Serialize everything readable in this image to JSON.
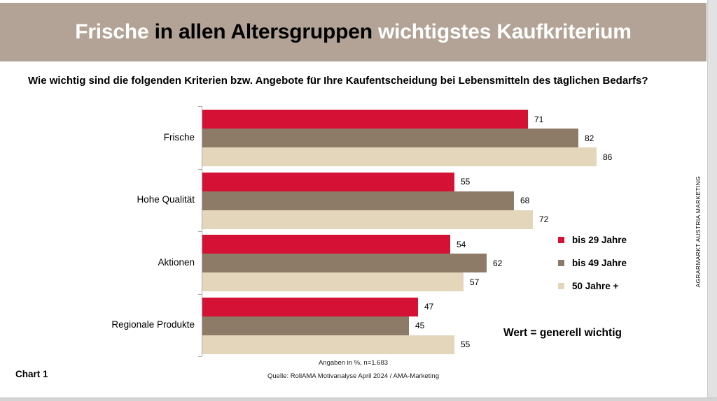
{
  "banner": {
    "background": "#b2a396",
    "title_parts": [
      {
        "text": "Frische",
        "color": "#ffffff"
      },
      {
        "text": " in allen Altersgruppen ",
        "color": "#000000"
      },
      {
        "text": "wichtigstes Kaufkriterium",
        "color": "#ffffff"
      }
    ]
  },
  "subtitle": "Wie wichtig sind die folgenden Kriterien bzw. Angebote für Ihre Kaufentscheidung bei Lebensmitteln des täglichen Bedarfs?",
  "chart_data": {
    "type": "bar",
    "orientation": "horizontal",
    "title": "Frische in allen Altersgruppen wichtigstes Kaufkriterium",
    "categories": [
      "Frische",
      "Hohe Qualität",
      "Aktionen",
      "Regionale Produkte"
    ],
    "series": [
      {
        "name": "bis 29 Jahre",
        "color": "#d51235",
        "values": [
          71,
          55,
          54,
          47
        ]
      },
      {
        "name": "bis 49 Jahre",
        "color": "#8d7b68",
        "values": [
          82,
          68,
          62,
          45
        ]
      },
      {
        "name": "50 Jahre +",
        "color": "#e4d6ba",
        "values": [
          86,
          72,
          57,
          55
        ]
      }
    ],
    "value_axis_range": [
      0,
      100
    ],
    "value_labels_shown": true,
    "legend_position": "right",
    "gridlines": false
  },
  "annotations": {
    "note": "Wert = generell wichtig",
    "side_text": "AGRARMARKT AUSTRIA MARKETING"
  },
  "footer": {
    "footnote": "Angaben in %, n=1.683",
    "source": "Quelle: RollAMA Motivanalyse April 2024 / AMA-Marketing",
    "chart_label": "Chart 1"
  }
}
